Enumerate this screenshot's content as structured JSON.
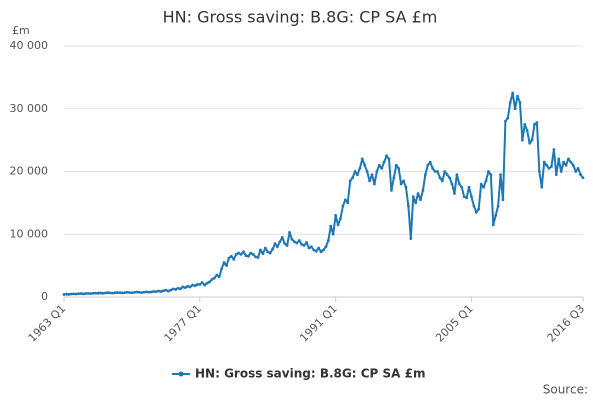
{
  "chart_data": {
    "type": "line",
    "title": "HN: Gross saving: B.8G: CP SA £m",
    "y_unit": "£m",
    "source": "Source:",
    "categories": [
      "1963 Q1",
      null,
      null,
      null,
      null,
      null,
      null,
      null,
      null,
      null,
      null,
      null,
      null,
      null,
      null,
      null,
      null,
      null,
      null,
      null,
      null,
      null,
      null,
      null,
      null,
      null,
      null,
      null,
      null,
      null,
      null,
      null,
      null,
      null,
      null,
      null,
      null,
      null,
      null,
      null,
      null,
      null,
      null,
      null,
      null,
      null,
      null,
      null,
      null,
      null,
      null,
      null,
      null,
      null,
      null,
      null,
      "1977 Q1",
      null,
      null,
      null,
      null,
      null,
      null,
      null,
      null,
      null,
      null,
      null,
      null,
      null,
      null,
      null,
      null,
      null,
      null,
      null,
      null,
      null,
      null,
      null,
      null,
      null,
      null,
      null,
      null,
      null,
      null,
      null,
      null,
      null,
      null,
      null,
      null,
      null,
      null,
      null,
      null,
      null,
      null,
      null,
      null,
      null,
      null,
      null,
      null,
      null,
      null,
      null,
      null,
      null,
      null,
      null,
      "1991 Q1",
      null,
      null,
      null,
      null,
      null,
      null,
      null,
      null,
      null,
      null,
      null,
      null,
      null,
      null,
      null,
      null,
      null,
      null,
      null,
      null,
      null,
      null,
      null,
      null,
      null,
      null,
      null,
      null,
      null,
      null,
      null,
      null,
      null,
      null,
      null,
      null,
      null,
      null,
      null,
      null,
      null,
      null,
      null,
      null,
      null,
      null,
      null,
      null,
      null,
      null,
      null,
      null,
      null,
      null,
      null,
      "2005 Q1",
      null,
      null,
      null,
      null,
      null,
      null,
      null,
      null,
      null,
      null,
      null,
      null,
      null,
      null,
      null,
      null,
      null,
      null,
      null,
      null,
      null,
      null,
      null,
      null,
      null,
      null,
      null,
      null,
      null,
      null,
      null,
      null,
      null,
      null,
      null,
      null,
      null,
      null,
      null,
      null,
      null,
      null,
      null,
      null,
      null,
      "2016 Q3"
    ],
    "series": [
      {
        "name": "HN: Gross saving: B.8G: CP SA £m",
        "color": "#1f78b4",
        "values": [
          400,
          450,
          420,
          480,
          500,
          480,
          520,
          550,
          500,
          560,
          580,
          540,
          600,
          620,
          580,
          650,
          600,
          640,
          700,
          660,
          620,
          680,
          720,
          700,
          650,
          700,
          760,
          720,
          680,
          740,
          800,
          760,
          700,
          780,
          820,
          760,
          800,
          900,
          850,
          950,
          880,
          1000,
          1100,
          950,
          1100,
          1300,
          1200,
          1400,
          1300,
          1600,
          1500,
          1700,
          1600,
          1900,
          1800,
          2000,
          2000,
          2300,
          1900,
          2200,
          2400,
          2800,
          3000,
          3500,
          3200,
          4500,
          5500,
          5000,
          6200,
          6500,
          6000,
          6800,
          7000,
          6800,
          7200,
          6600,
          6500,
          7000,
          6800,
          6400,
          6300,
          7500,
          6900,
          7800,
          7200,
          7000,
          7600,
          8500,
          8000,
          8800,
          9500,
          8500,
          8200,
          10300,
          9200,
          8800,
          8600,
          9000,
          8400,
          8200,
          8700,
          7800,
          8000,
          7500,
          7300,
          7800,
          7200,
          7500,
          8000,
          9000,
          11300,
          10000,
          13000,
          11500,
          12500,
          14500,
          15500,
          15000,
          18500,
          19000,
          20000,
          19500,
          20500,
          22000,
          21000,
          20000,
          18500,
          19500,
          18000,
          20000,
          21000,
          20500,
          21500,
          22500,
          22000,
          17000,
          19000,
          21000,
          20500,
          18000,
          18500,
          17500,
          14500,
          9300,
          16000,
          15000,
          16500,
          15500,
          17000,
          19500,
          21000,
          21500,
          20500,
          20000,
          20000,
          19000,
          18500,
          20000,
          19500,
          19000,
          18000,
          16500,
          19500,
          18000,
          17500,
          16000,
          15800,
          17500,
          16000,
          14500,
          13500,
          14000,
          18000,
          17500,
          18500,
          20000,
          19500,
          11500,
          13000,
          14500,
          19500,
          15500,
          28000,
          28500,
          31000,
          32500,
          30000,
          32000,
          31000,
          25000,
          27500,
          26500,
          24500,
          25000,
          27500,
          27800,
          20000,
          17500,
          21500,
          21000,
          20500,
          20800,
          23500,
          19500,
          22000,
          20000,
          21500,
          21000,
          22000,
          21500,
          21000,
          20000,
          20500,
          19500,
          19000
        ]
      }
    ],
    "ylim": [
      0,
      40000
    ],
    "yticks": [
      0,
      {
        "value": 10000,
        "label": "10 000"
      },
      {
        "value": 20000,
        "label": "20 000"
      },
      {
        "value": 30000,
        "label": "30 000"
      },
      {
        "value": 40000,
        "label": "40 000"
      }
    ],
    "grid": true
  }
}
